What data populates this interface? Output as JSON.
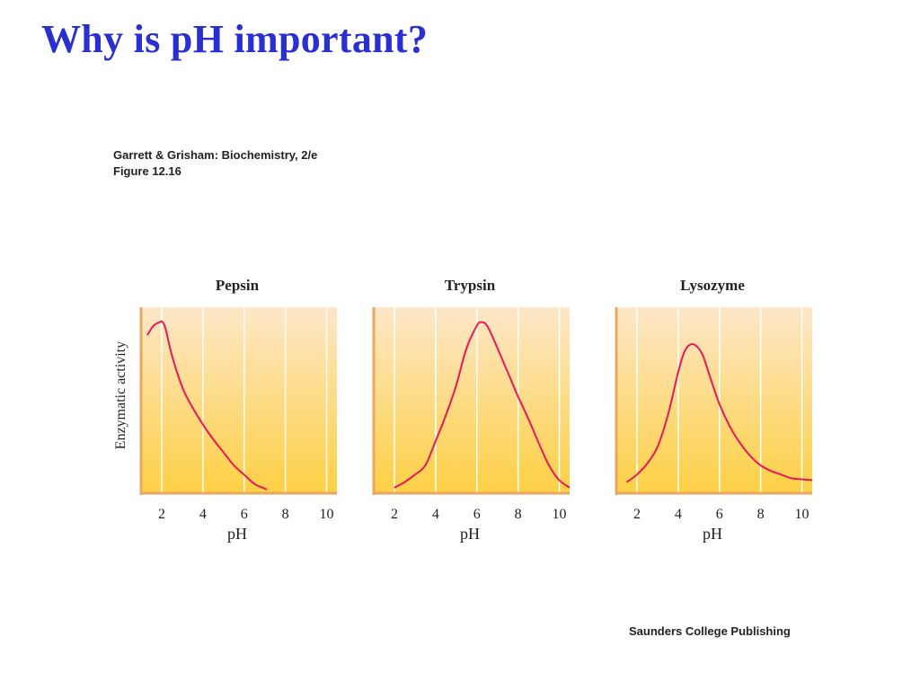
{
  "slide": {
    "title": "Why is pH important?",
    "source_line1": "Garrett & Grisham: Biochemistry, 2/e",
    "source_line2": "Figure 12.16",
    "publisher": "Saunders College Publishing"
  },
  "colors": {
    "title": "#2a2fd0",
    "curve": "#e8185a",
    "plot_top": "#fde7c8",
    "plot_bottom": "#fdd044",
    "axis": "#e8a862",
    "grid": "#ffffff"
  },
  "shared": {
    "ylabel": "Enzymatic activity"
  },
  "chart_data": [
    {
      "type": "line",
      "title": "Pepsin",
      "xlabel": "pH",
      "ylabel": "Enzymatic activity",
      "xlim": [
        1,
        10.5
      ],
      "ylim": [
        0,
        1
      ],
      "xticks": [
        2,
        4,
        6,
        8,
        10
      ],
      "grid": true,
      "series": [
        {
          "x": [
            1.3,
            1.6,
            1.9,
            2.05,
            2.2,
            2.5,
            3.0,
            3.5,
            4.0,
            4.5,
            5.0,
            5.5,
            6.0,
            6.5,
            6.9,
            7.1
          ],
          "y": [
            0.85,
            0.9,
            0.92,
            0.92,
            0.88,
            0.74,
            0.57,
            0.46,
            0.37,
            0.29,
            0.22,
            0.15,
            0.1,
            0.05,
            0.03,
            0.02
          ]
        }
      ]
    },
    {
      "type": "line",
      "title": "Trypsin",
      "xlabel": "pH",
      "ylabel": "",
      "xlim": [
        1,
        10.5
      ],
      "ylim": [
        0,
        1
      ],
      "xticks": [
        2,
        4,
        6,
        8,
        10
      ],
      "grid": true,
      "series": [
        {
          "x": [
            2.0,
            2.5,
            3.0,
            3.5,
            4.0,
            4.5,
            5.0,
            5.5,
            6.0,
            6.2,
            6.5,
            7.0,
            7.5,
            8.0,
            8.5,
            9.0,
            9.5,
            10.0,
            10.5
          ],
          "y": [
            0.03,
            0.06,
            0.1,
            0.15,
            0.28,
            0.42,
            0.58,
            0.78,
            0.9,
            0.92,
            0.9,
            0.78,
            0.65,
            0.52,
            0.4,
            0.27,
            0.15,
            0.07,
            0.03
          ]
        }
      ]
    },
    {
      "type": "line",
      "title": "Lysozyme",
      "xlabel": "pH",
      "ylabel": "",
      "xlim": [
        1,
        10.5
      ],
      "ylim": [
        0,
        1
      ],
      "xticks": [
        2,
        4,
        6,
        8,
        10
      ],
      "grid": true,
      "series": [
        {
          "x": [
            1.5,
            2.0,
            2.5,
            3.0,
            3.5,
            4.0,
            4.3,
            4.6,
            4.9,
            5.2,
            5.5,
            6.0,
            6.5,
            7.0,
            7.5,
            8.0,
            8.5,
            9.0,
            9.5,
            10.0,
            10.5
          ],
          "y": [
            0.06,
            0.1,
            0.16,
            0.25,
            0.42,
            0.65,
            0.76,
            0.8,
            0.79,
            0.74,
            0.64,
            0.48,
            0.36,
            0.27,
            0.2,
            0.15,
            0.12,
            0.1,
            0.08,
            0.075,
            0.07
          ]
        }
      ]
    }
  ]
}
